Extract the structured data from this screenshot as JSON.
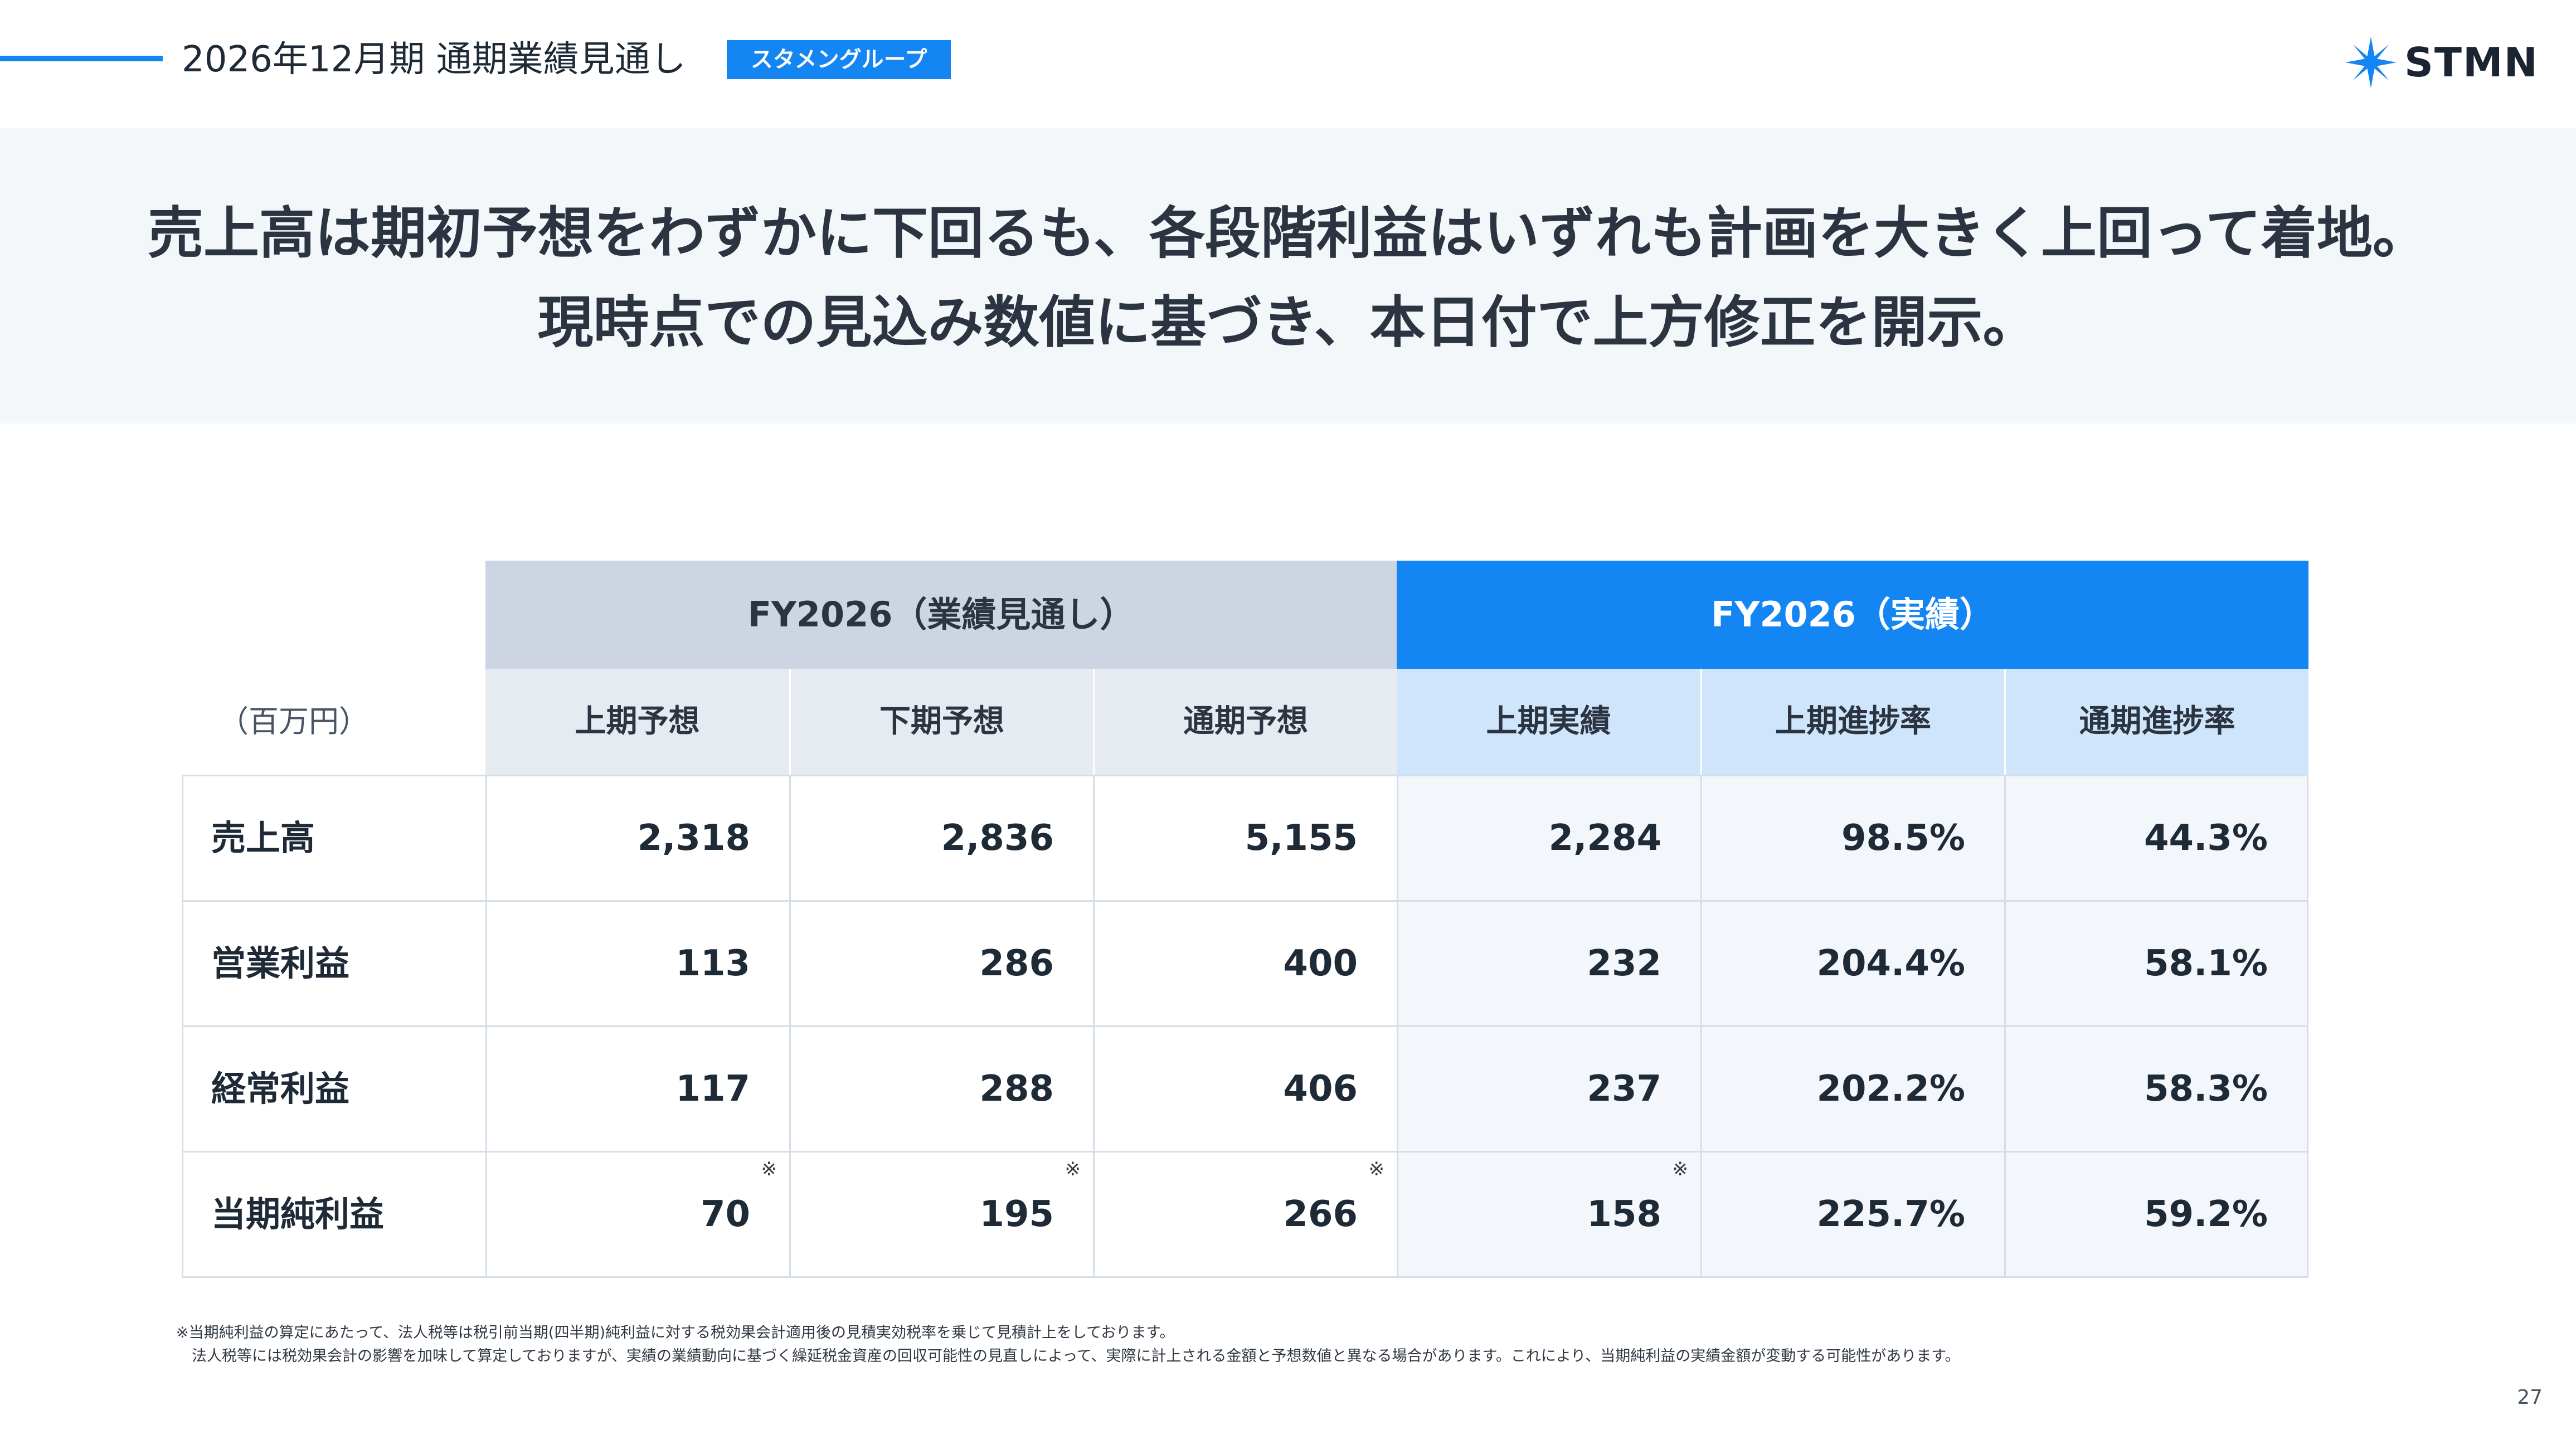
{
  "header": {
    "title": "2026年12月期  通期業績見通し",
    "badge": "スタメングループ",
    "logo_text": "STMN",
    "logo_icon": "star-burst-icon",
    "accent_color": "#1386f3"
  },
  "headline": {
    "line1": "売上高は期初予想をわずかに下回るも、各段階利益はいずれも計画を大きく上回って着地。",
    "line2": "現時点での見込み数値に基づき、本日付で上方修正を開示。"
  },
  "table": {
    "unit": "（百万円）",
    "group_forecast": "FY2026（業績見通し）",
    "group_actual": "FY2026（実績）",
    "columns": [
      "上期予想",
      "下期予想",
      "通期予想",
      "上期実績",
      "上期進捗率",
      "通期進捗率"
    ],
    "rows": [
      {
        "label": "売上高",
        "values": [
          "2,318",
          "2,836",
          "5,155",
          "2,284",
          "98.5%",
          "44.3%"
        ],
        "marks": [
          "",
          "",
          "",
          ""
        ]
      },
      {
        "label": "営業利益",
        "values": [
          "113",
          "286",
          "400",
          "232",
          "204.4%",
          "58.1%"
        ],
        "marks": [
          "",
          "",
          "",
          ""
        ]
      },
      {
        "label": "経常利益",
        "values": [
          "117",
          "288",
          "406",
          "237",
          "202.2%",
          "58.3%"
        ],
        "marks": [
          "",
          "",
          "",
          ""
        ]
      },
      {
        "label": "当期純利益",
        "values": [
          "70",
          "195",
          "266",
          "158",
          "225.7%",
          "59.2%"
        ],
        "marks": [
          "※",
          "※",
          "※",
          "※"
        ]
      }
    ]
  },
  "footnotes": {
    "line1": "※当期純利益の算定にあたって、法人税等は税引前当期(四半期)純利益に対する税効果会計適用後の見積実効税率を乗じて見積計上をしております。",
    "line2": "法人税等には税効果会計の影響を加味して算定しておりますが、実績の業績動向に基づく繰延税金資産の回収可能性の見直しによって、実際に計上される金額と予想数値と異なる場合があります。これにより、当期純利益の実績金額が変動する可能性があります。"
  },
  "page_number": "27"
}
